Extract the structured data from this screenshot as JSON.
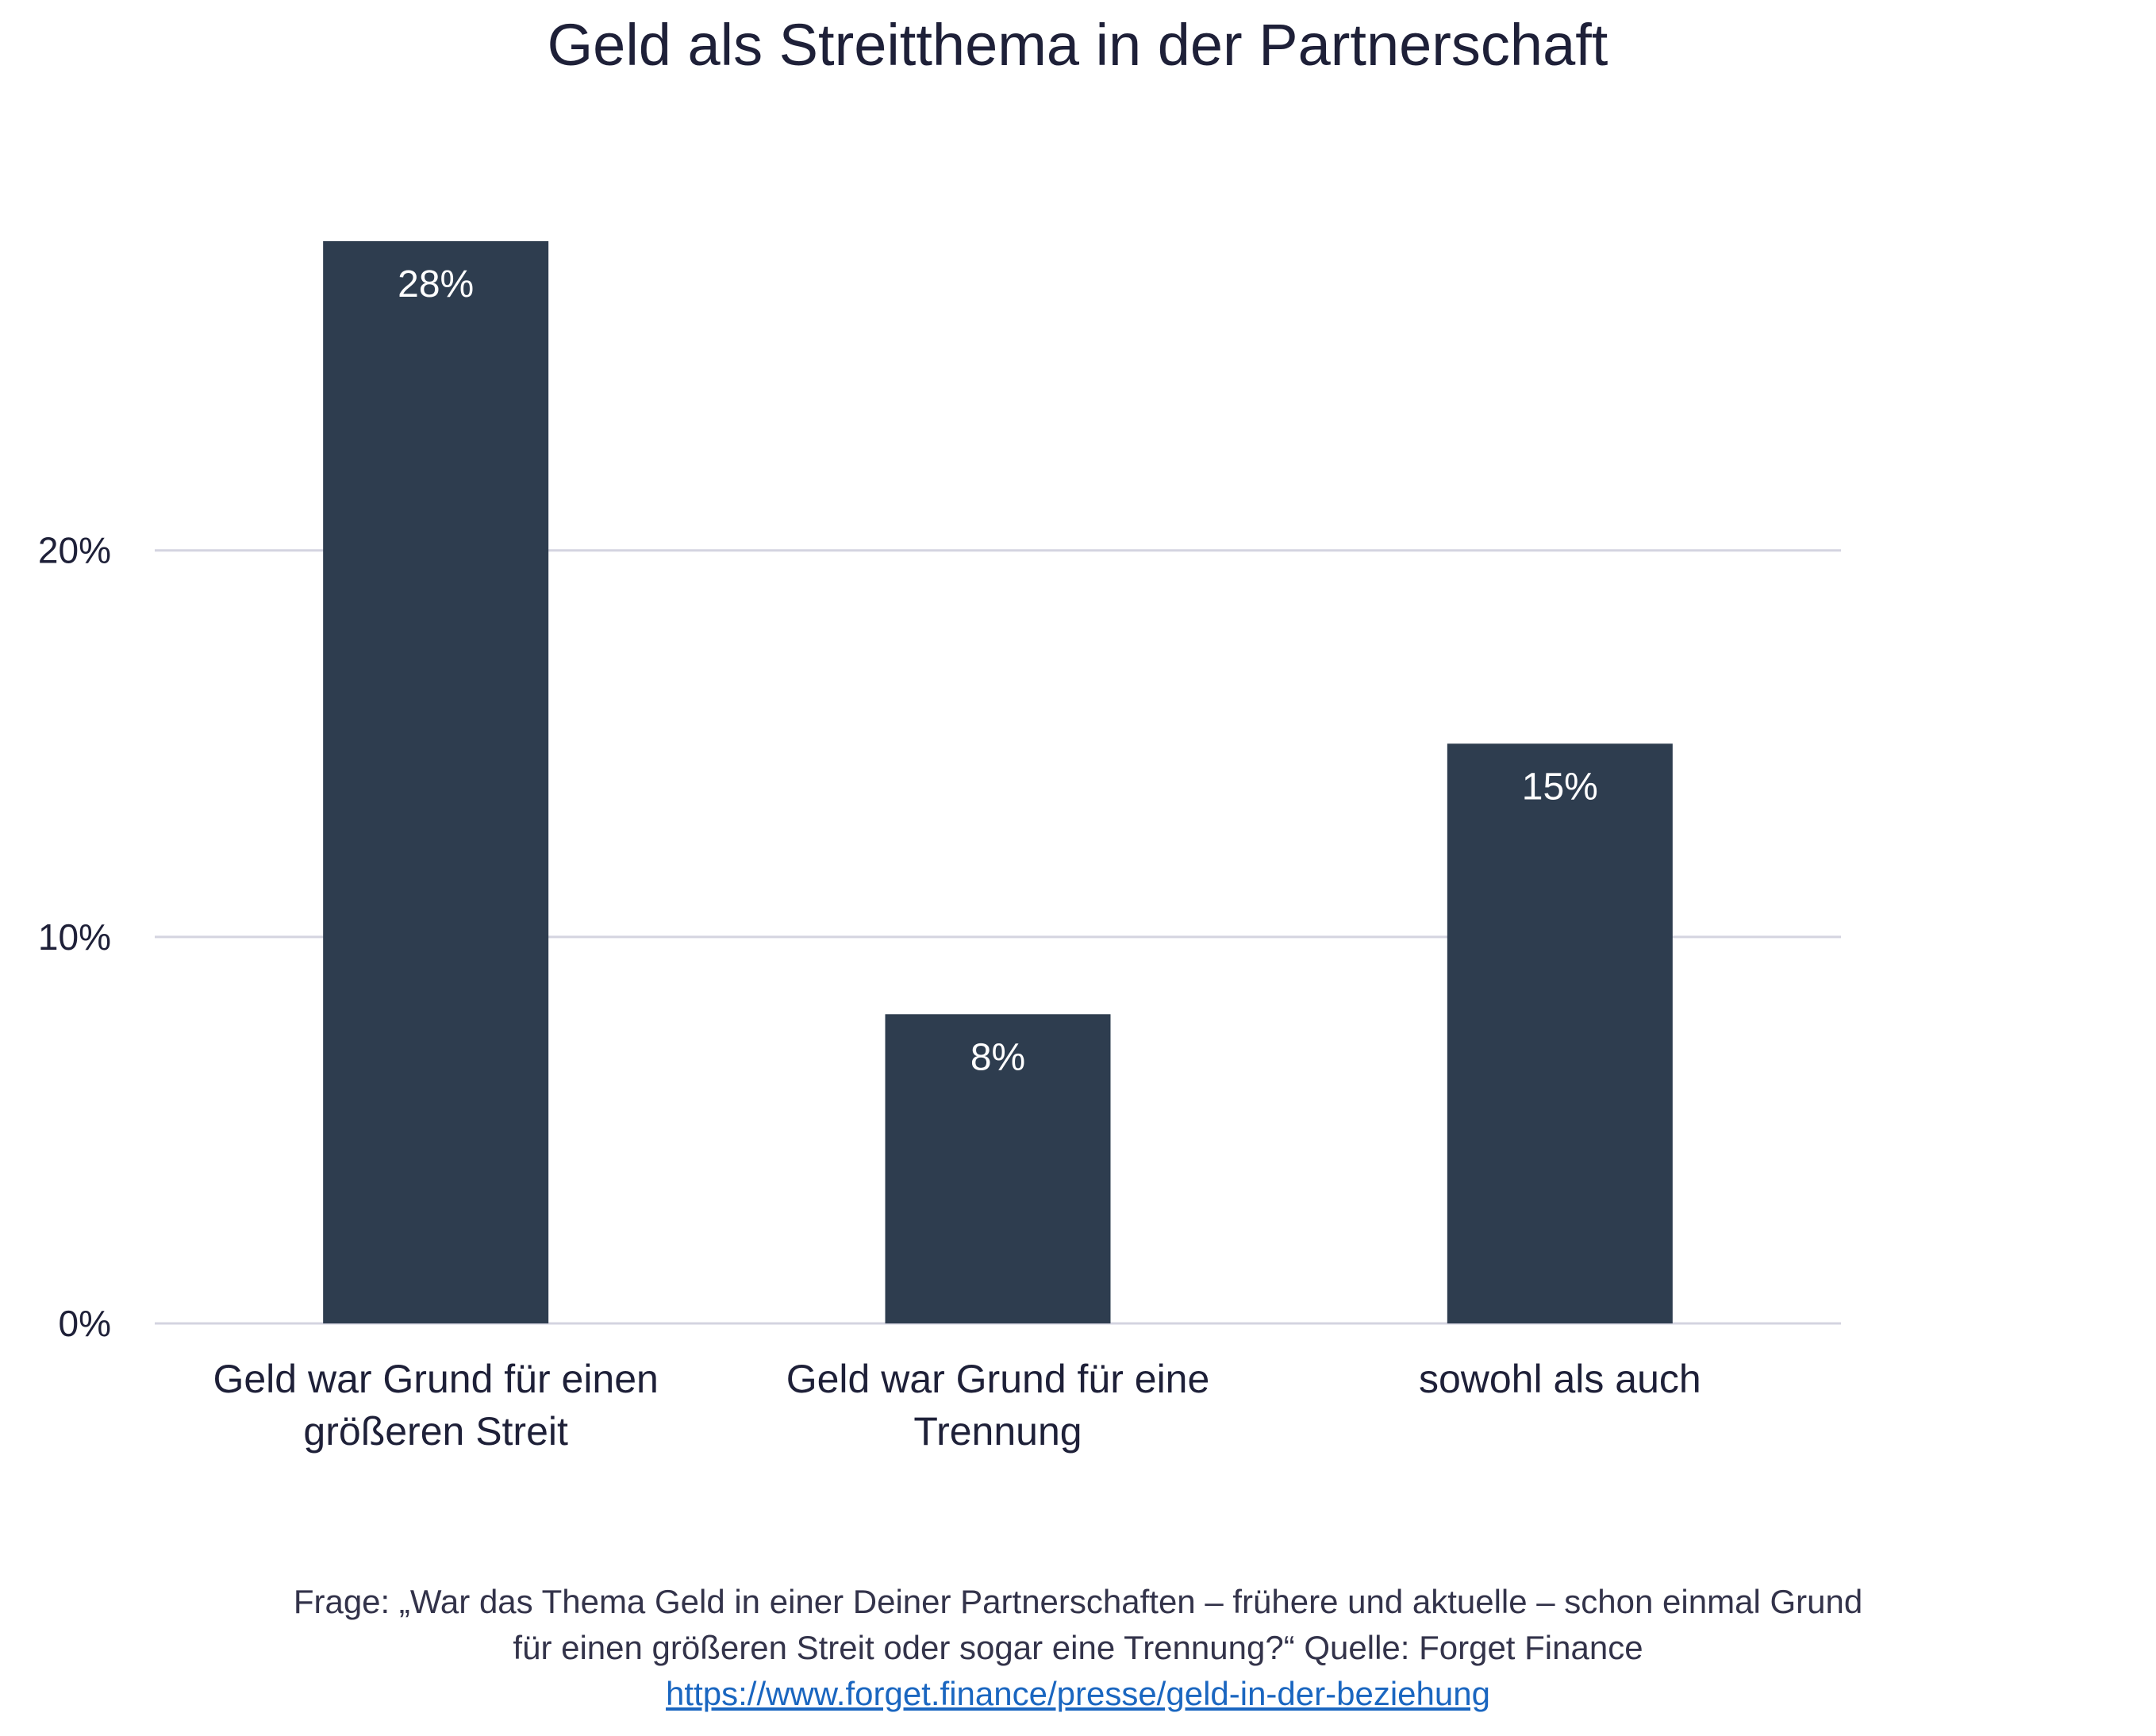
{
  "chart_data": {
    "type": "bar",
    "title": "Geld als Streitthema in der Partnerschaft",
    "categories": [
      [
        "Geld war Grund für einen",
        "größeren Streit"
      ],
      [
        "Geld war Grund für eine",
        "Trennung"
      ],
      [
        "sowohl als auch"
      ]
    ],
    "values": [
      28,
      8,
      15
    ],
    "value_labels": [
      "28%",
      "8%",
      "15%"
    ],
    "y_ticks": [
      0,
      10,
      20
    ],
    "y_tick_labels": [
      "0%",
      "10%",
      "20%"
    ],
    "ylim": [
      0,
      28
    ],
    "grid": true,
    "xlabel": "",
    "ylabel": "",
    "colors": {
      "bar": "#2e3d4f",
      "bar_label": "#ffffff",
      "grid": "#d4d4e0",
      "text": "#1e2038",
      "link": "#1a66c0"
    }
  },
  "footer": {
    "line1": "Frage: „War das Thema Geld in einer Deiner Partnerschaften – frühere und aktuelle – schon einmal Grund",
    "line2": "für einen größeren Streit oder sogar eine Trennung?“ Quelle: Forget Finance",
    "link": "https://www.forget.finance/presse/geld-in-der-beziehung"
  }
}
